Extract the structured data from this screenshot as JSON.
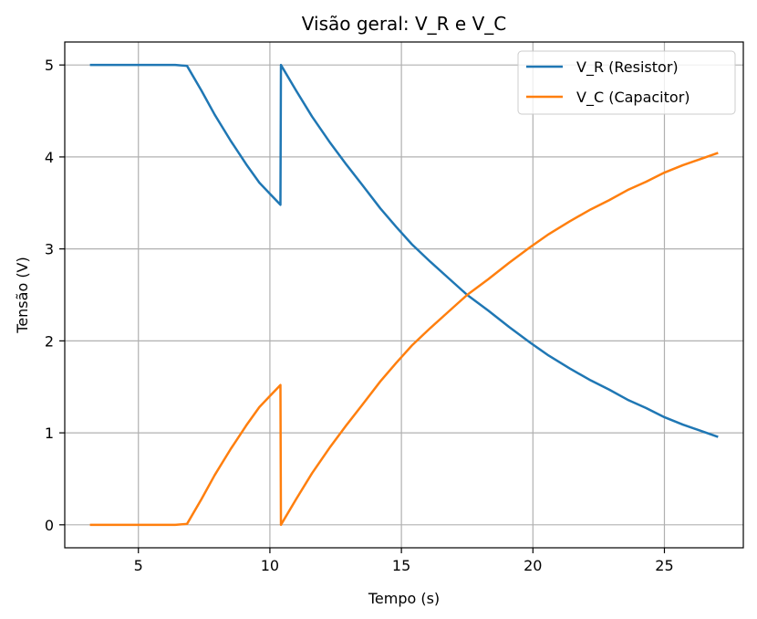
{
  "chart_data": {
    "type": "line",
    "title": "Visão geral: V_R e V_C",
    "xlabel": "Tempo (s)",
    "ylabel": "Tensão (V)",
    "xlim": [
      2.2,
      28.0
    ],
    "ylim": [
      -0.25,
      5.25
    ],
    "xticks": [
      5,
      10,
      15,
      20,
      25
    ],
    "yticks": [
      0,
      1,
      2,
      3,
      4,
      5
    ],
    "xtick_labels": [
      "5",
      "10",
      "15",
      "20",
      "25"
    ],
    "ytick_labels": [
      "0",
      "1",
      "2",
      "3",
      "4",
      "5"
    ],
    "grid": true,
    "legend_position": "upper right",
    "series": [
      {
        "name": "V_R (Resistor)",
        "color": "#1f77b4",
        "points": [
          [
            3.2,
            5.0
          ],
          [
            6.4,
            5.0
          ],
          [
            6.85,
            4.99
          ],
          [
            7.4,
            4.72
          ],
          [
            7.9,
            4.46
          ],
          [
            8.5,
            4.18
          ],
          [
            9.1,
            3.92
          ],
          [
            9.6,
            3.72
          ],
          [
            10.0,
            3.6
          ],
          [
            10.4,
            3.48
          ],
          [
            10.42,
            5.0
          ],
          [
            11.0,
            4.72
          ],
          [
            11.6,
            4.44
          ],
          [
            12.3,
            4.15
          ],
          [
            12.9,
            3.92
          ],
          [
            13.5,
            3.7
          ],
          [
            14.2,
            3.44
          ],
          [
            14.8,
            3.24
          ],
          [
            15.4,
            3.05
          ],
          [
            16.1,
            2.86
          ],
          [
            16.8,
            2.68
          ],
          [
            17.5,
            2.5
          ],
          [
            18.3,
            2.33
          ],
          [
            19.1,
            2.15
          ],
          [
            19.9,
            1.98
          ],
          [
            20.6,
            1.84
          ],
          [
            21.4,
            1.7
          ],
          [
            22.2,
            1.57
          ],
          [
            22.9,
            1.47
          ],
          [
            23.6,
            1.36
          ],
          [
            24.3,
            1.27
          ],
          [
            25.0,
            1.17
          ],
          [
            25.7,
            1.09
          ],
          [
            26.4,
            1.02
          ],
          [
            27.0,
            0.96
          ]
        ]
      },
      {
        "name": "V_C (Capacitor)",
        "color": "#ff7f0e",
        "points": [
          [
            3.2,
            0.0
          ],
          [
            6.4,
            0.0
          ],
          [
            6.85,
            0.01
          ],
          [
            7.4,
            0.28
          ],
          [
            7.9,
            0.54
          ],
          [
            8.5,
            0.82
          ],
          [
            9.1,
            1.08
          ],
          [
            9.6,
            1.28
          ],
          [
            10.0,
            1.4
          ],
          [
            10.4,
            1.52
          ],
          [
            10.42,
            0.0
          ],
          [
            11.0,
            0.28
          ],
          [
            11.6,
            0.56
          ],
          [
            12.3,
            0.85
          ],
          [
            12.9,
            1.08
          ],
          [
            13.5,
            1.3
          ],
          [
            14.2,
            1.56
          ],
          [
            14.8,
            1.76
          ],
          [
            15.4,
            1.95
          ],
          [
            16.1,
            2.14
          ],
          [
            16.8,
            2.32
          ],
          [
            17.5,
            2.5
          ],
          [
            18.3,
            2.67
          ],
          [
            19.1,
            2.85
          ],
          [
            19.9,
            3.02
          ],
          [
            20.6,
            3.16
          ],
          [
            21.4,
            3.3
          ],
          [
            22.2,
            3.43
          ],
          [
            22.9,
            3.53
          ],
          [
            23.6,
            3.64
          ],
          [
            24.3,
            3.73
          ],
          [
            25.0,
            3.83
          ],
          [
            25.7,
            3.91
          ],
          [
            26.4,
            3.98
          ],
          [
            27.0,
            4.04
          ]
        ]
      }
    ]
  }
}
